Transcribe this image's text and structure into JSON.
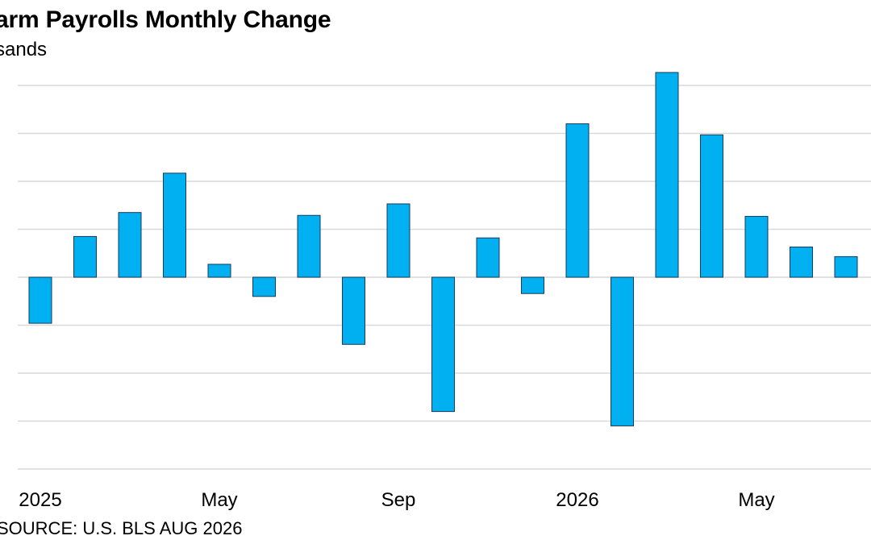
{
  "chart_data": {
    "type": "bar",
    "title": "arm Payrolls Monthly Change",
    "subtitle": "sands",
    "source": "SOURCE: U.S. BLS AUG 2026",
    "x_tick_labels": [
      {
        "label": "2025",
        "index": 0
      },
      {
        "label": "May",
        "index": 4
      },
      {
        "label": "Sep",
        "index": 8
      },
      {
        "label": "2026",
        "index": 12
      },
      {
        "label": "May",
        "index": 16
      }
    ],
    "categories": [
      "2025-01",
      "2025-02",
      "2025-03",
      "2025-04",
      "2025-05",
      "2025-06",
      "2025-07",
      "2025-08",
      "2025-09",
      "2025-10",
      "2025-11",
      "2025-12",
      "2026-01",
      "2026-02",
      "2026-03",
      "2026-04",
      "2026-05",
      "2026-06",
      "2026-07"
    ],
    "values": [
      -96,
      85,
      135,
      217,
      27,
      -40,
      129,
      -140,
      153,
      -280,
      82,
      -34,
      320,
      -310,
      427,
      297,
      127,
      63,
      43
    ],
    "ylim": [
      -400,
      400
    ],
    "gridlines": [
      400,
      300,
      200,
      100,
      0,
      -100,
      -200,
      -300,
      -400
    ],
    "grid": true,
    "bar_color": "#00b0f0",
    "bar_stroke": "#1a3a5c",
    "grid_color": "#d9d9d9"
  }
}
